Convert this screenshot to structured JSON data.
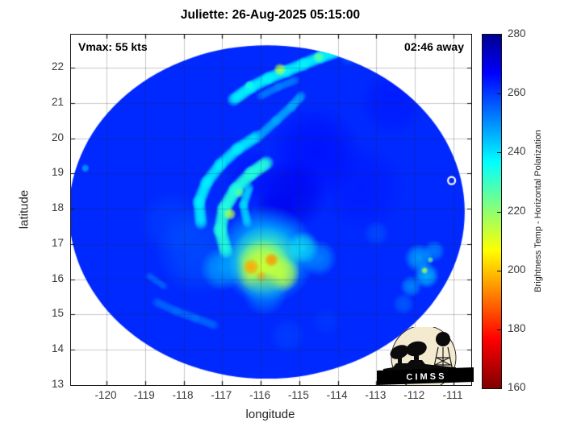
{
  "title": "Juliette: 26-Aug-2025 05:15:00",
  "annotations": {
    "vmax": "Vmax: 55 kts",
    "time_away": "02:46 away"
  },
  "logo": {
    "name": "CIMSS",
    "text_spaced": "C I M S S",
    "banner_color": "#000000",
    "disc_color": "#f4ead0"
  },
  "colors": {
    "grid": "rgba(40,40,40,0.25)",
    "axis": "#111111",
    "marker_outline": "#ffffff"
  },
  "chart_data": {
    "type": "heatmap",
    "title": "Juliette: 26-Aug-2025 05:15:00",
    "subtitle_left": "Vmax: 55 kts",
    "subtitle_right": "02:46 away",
    "xlabel": "longitude",
    "ylabel": "latitude",
    "xlim": [
      -120.92,
      -110.54
    ],
    "ylim": [
      13.0,
      22.94
    ],
    "x_ticks": [
      -120,
      -119,
      -118,
      -117,
      -116,
      -115,
      -114,
      -113,
      -112,
      -111
    ],
    "y_ticks": [
      13,
      14,
      15,
      16,
      17,
      18,
      19,
      20,
      21,
      22
    ],
    "grid": true,
    "colorbar": {
      "title": "Brightness Temp - Horizontal Polarization",
      "range": [
        160,
        280
      ],
      "ticks": [
        160,
        180,
        200,
        220,
        240,
        260,
        280
      ]
    },
    "colormap": [
      [
        160.0,
        "#800000"
      ],
      [
        176.8,
        "#ff0000"
      ],
      [
        206.8,
        "#ffff00"
      ],
      [
        236.8,
        "#00ffff"
      ],
      [
        266.8,
        "#0000ff"
      ],
      [
        280.0,
        "#000090"
      ]
    ],
    "swath": {
      "center": [
        -115.84,
        17.91
      ],
      "rx_deg": 5.13,
      "ry_deg": 4.73
    },
    "background_K": 262,
    "features": [
      {
        "t": "blob",
        "p": [
          -115.2,
          18.4
        ],
        "r": 1.0,
        "v": 269,
        "a": 0.75
      },
      {
        "t": "blob",
        "p": [
          -114.6,
          19.6
        ],
        "r": 1.3,
        "v": 267,
        "a": 0.55
      },
      {
        "t": "blob",
        "p": [
          -116.2,
          18.9
        ],
        "r": 0.8,
        "v": 266,
        "a": 0.5
      },
      {
        "t": "blob",
        "p": [
          -113.4,
          18.6
        ],
        "r": 1.2,
        "v": 265,
        "a": 0.45
      },
      {
        "t": "blob",
        "p": [
          -115.6,
          17.9
        ],
        "r": 0.6,
        "v": 268,
        "a": 0.65
      },
      {
        "t": "blob",
        "p": [
          -112.6,
          21.0
        ],
        "r": 0.9,
        "v": 266,
        "a": 0.4
      },
      {
        "t": "blob",
        "p": [
          -117.6,
          16.8
        ],
        "r": 1.2,
        "v": 254,
        "a": 0.45
      },
      {
        "t": "blob",
        "p": [
          -118.3,
          17.6
        ],
        "r": 0.9,
        "v": 256,
        "a": 0.35
      },
      {
        "t": "blob",
        "p": [
          -115.85,
          16.7
        ],
        "r": 1.35,
        "v": 240,
        "a": 0.85
      },
      {
        "t": "blob",
        "p": [
          -115.9,
          16.45
        ],
        "r": 1.0,
        "v": 225,
        "a": 0.9
      },
      {
        "t": "blob",
        "p": [
          -115.95,
          16.35
        ],
        "r": 0.75,
        "v": 212,
        "a": 0.95
      },
      {
        "t": "blob",
        "p": [
          -115.45,
          16.15
        ],
        "r": 0.5,
        "v": 214,
        "a": 0.85
      },
      {
        "t": "blob",
        "p": [
          -116.25,
          16.35
        ],
        "r": 0.24,
        "v": 196,
        "a": 0.9
      },
      {
        "t": "blob",
        "p": [
          -115.72,
          16.55
        ],
        "r": 0.2,
        "v": 194,
        "a": 0.9
      },
      {
        "t": "blob",
        "p": [
          -115.98,
          16.08
        ],
        "r": 0.17,
        "v": 199,
        "a": 0.85
      },
      {
        "t": "blob",
        "p": [
          -117.0,
          16.3
        ],
        "r": 0.6,
        "v": 244,
        "a": 0.65
      },
      {
        "t": "blob",
        "p": [
          -115.9,
          15.6
        ],
        "r": 0.6,
        "v": 248,
        "a": 0.55
      },
      {
        "t": "blob",
        "p": [
          -114.9,
          16.9
        ],
        "r": 0.45,
        "v": 235,
        "a": 0.7
      },
      {
        "t": "blob",
        "p": [
          -114.5,
          16.6
        ],
        "r": 0.5,
        "v": 244,
        "a": 0.55
      },
      {
        "t": "band",
        "pts": [
          [
            -116.9,
            16.8
          ],
          [
            -117.05,
            17.4
          ],
          [
            -116.95,
            18.0
          ],
          [
            -116.65,
            18.55
          ],
          [
            -116.25,
            19.0
          ],
          [
            -115.85,
            19.3
          ]
        ],
        "r": 0.22,
        "v": 233,
        "a": 0.8
      },
      {
        "t": "blob",
        "p": [
          -116.8,
          17.85
        ],
        "r": 0.18,
        "v": 216,
        "a": 0.9
      },
      {
        "t": "blob",
        "p": [
          -116.55,
          18.45
        ],
        "r": 0.15,
        "v": 225,
        "a": 0.8
      },
      {
        "t": "band",
        "pts": [
          [
            -117.55,
            17.6
          ],
          [
            -117.6,
            18.2
          ],
          [
            -117.4,
            18.75
          ],
          [
            -117.05,
            19.25
          ],
          [
            -116.6,
            19.7
          ],
          [
            -116.1,
            20.05
          ]
        ],
        "r": 0.2,
        "v": 238,
        "a": 0.65
      },
      {
        "t": "band",
        "pts": [
          [
            -116.35,
            17.6
          ],
          [
            -116.45,
            18.1
          ],
          [
            -116.3,
            18.6
          ]
        ],
        "r": 0.15,
        "v": 240,
        "a": 0.55
      },
      {
        "t": "band",
        "pts": [
          [
            -116.0,
            20.1
          ],
          [
            -115.6,
            20.5
          ],
          [
            -115.2,
            20.9
          ],
          [
            -114.95,
            21.2
          ]
        ],
        "r": 0.16,
        "v": 246,
        "a": 0.55
      },
      {
        "t": "band",
        "pts": [
          [
            -116.7,
            21.1
          ],
          [
            -116.25,
            21.45
          ],
          [
            -115.8,
            21.7
          ],
          [
            -115.35,
            21.9
          ],
          [
            -114.9,
            22.1
          ],
          [
            -114.45,
            22.3
          ],
          [
            -114.05,
            22.45
          ]
        ],
        "r": 0.2,
        "v": 238,
        "a": 0.75
      },
      {
        "t": "blob",
        "p": [
          -115.5,
          21.95
        ],
        "r": 0.18,
        "v": 215,
        "a": 0.9
      },
      {
        "t": "blob",
        "p": [
          -114.5,
          22.3
        ],
        "r": 0.16,
        "v": 224,
        "a": 0.85
      },
      {
        "t": "blob",
        "p": [
          -114.05,
          22.5
        ],
        "r": 0.14,
        "v": 230,
        "a": 0.8
      },
      {
        "t": "blob",
        "p": [
          -116.3,
          21.5
        ],
        "r": 0.13,
        "v": 232,
        "a": 0.7
      },
      {
        "t": "band",
        "pts": [
          [
            -116.0,
            21.2
          ],
          [
            -115.55,
            21.45
          ],
          [
            -115.1,
            21.65
          ]
        ],
        "r": 0.14,
        "v": 250,
        "a": 0.45
      },
      {
        "t": "band",
        "pts": [
          [
            -118.7,
            15.35
          ],
          [
            -118.2,
            15.1
          ],
          [
            -117.7,
            14.9
          ],
          [
            -117.2,
            14.7
          ]
        ],
        "r": 0.15,
        "v": 253,
        "a": 0.45
      },
      {
        "t": "band",
        "pts": [
          [
            -118.9,
            16.1
          ],
          [
            -118.5,
            15.8
          ]
        ],
        "r": 0.12,
        "v": 252,
        "a": 0.35
      },
      {
        "t": "blob",
        "p": [
          -111.9,
          16.6
        ],
        "r": 0.4,
        "v": 242,
        "a": 0.65
      },
      {
        "t": "blob",
        "p": [
          -111.7,
          16.1
        ],
        "r": 0.35,
        "v": 240,
        "a": 0.7
      },
      {
        "t": "blob",
        "p": [
          -112.1,
          15.8
        ],
        "r": 0.3,
        "v": 243,
        "a": 0.55
      },
      {
        "t": "blob",
        "p": [
          -111.5,
          16.8
        ],
        "r": 0.3,
        "v": 245,
        "a": 0.55
      },
      {
        "t": "blob",
        "p": [
          -111.75,
          16.25
        ],
        "r": 0.1,
        "v": 216,
        "a": 0.9
      },
      {
        "t": "blob",
        "p": [
          -111.6,
          16.55
        ],
        "r": 0.09,
        "v": 224,
        "a": 0.8
      },
      {
        "t": "blob",
        "p": [
          -112.3,
          15.3
        ],
        "r": 0.3,
        "v": 250,
        "a": 0.45
      },
      {
        "t": "blob",
        "p": [
          -113.0,
          17.3
        ],
        "r": 0.35,
        "v": 252,
        "a": 0.35
      },
      {
        "t": "blob",
        "p": [
          -115.3,
          14.4
        ],
        "r": 0.5,
        "v": 256,
        "a": 0.35
      },
      {
        "t": "blob",
        "p": [
          -114.3,
          14.8
        ],
        "r": 0.4,
        "v": 257,
        "a": 0.3
      },
      {
        "t": "blob",
        "p": [
          -120.55,
          19.15
        ],
        "r": 0.12,
        "v": 245,
        "a": 0.8
      },
      {
        "t": "blob",
        "p": [
          -113.7,
          22.35
        ],
        "r": 0.3,
        "v": 250,
        "a": 0.35
      },
      {
        "t": "marker",
        "p": [
          -111.05,
          18.8
        ]
      }
    ]
  }
}
